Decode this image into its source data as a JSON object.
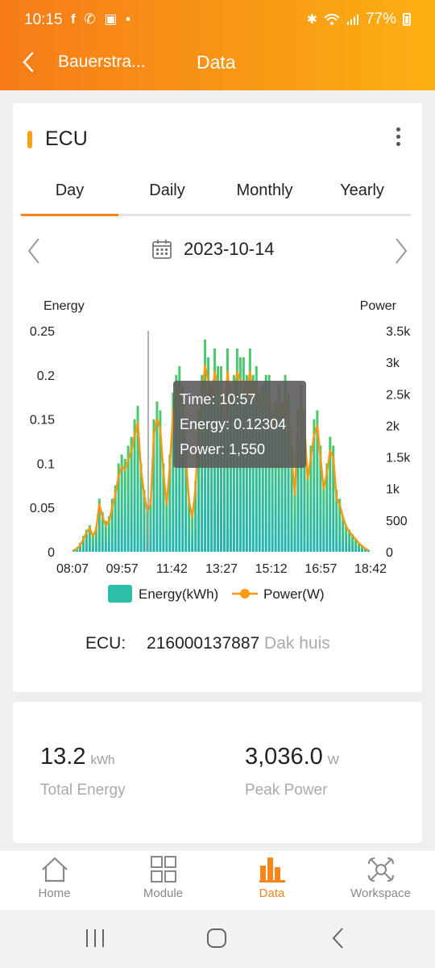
{
  "status_bar": {
    "time": "10:15",
    "notifications": "f ✆ ▣ •",
    "battery": "77%"
  },
  "header": {
    "site_name": "Bauerstra...",
    "title": "Data"
  },
  "card": {
    "title": "ECU",
    "tabs": [
      "Day",
      "Daily",
      "Monthly",
      "Yearly"
    ],
    "active_tab": "Day",
    "date": "2023-10-14"
  },
  "colors": {
    "accent": "#f5861c",
    "energy_bar": "#2bbfa6",
    "power_line": "#f59a12"
  },
  "chart_data": {
    "type": "bar",
    "left_axis_label": "Energy",
    "right_axis_label": "Power",
    "left_ticks": [
      "0.25",
      "0.2",
      "0.15",
      "0.1",
      "0.05",
      "0"
    ],
    "right_ticks": [
      "3.5k",
      "3k",
      "2.5k",
      "2k",
      "1.5k",
      "1k",
      "500",
      "0"
    ],
    "x_ticks": [
      "08:07",
      "09:57",
      "11:42",
      "13:27",
      "15:12",
      "16:57",
      "18:42"
    ],
    "ylim_energy": [
      0,
      0.25
    ],
    "ylim_power": [
      0,
      3500
    ],
    "legend": [
      "Energy(kWh)",
      "Power(W)"
    ],
    "tooltip": {
      "time": "Time: 10:57",
      "energy": "Energy: 0.12304",
      "power": "Power: 1,550"
    },
    "series": [
      {
        "name": "Energy(kWh)",
        "values": [
          0.002,
          0.005,
          0.01,
          0.018,
          0.025,
          0.03,
          0.02,
          0.028,
          0.06,
          0.045,
          0.035,
          0.04,
          0.06,
          0.075,
          0.1,
          0.11,
          0.105,
          0.12,
          0.13,
          0.15,
          0.165,
          0.1,
          0.07,
          0.05,
          0.06,
          0.15,
          0.17,
          0.16,
          0.1,
          0.06,
          0.11,
          0.18,
          0.2,
          0.21,
          0.19,
          0.12,
          0.06,
          0.04,
          0.08,
          0.16,
          0.2,
          0.24,
          0.22,
          0.19,
          0.23,
          0.21,
          0.21,
          0.17,
          0.23,
          0.19,
          0.2,
          0.23,
          0.22,
          0.22,
          0.2,
          0.23,
          0.2,
          0.21,
          0.18,
          0.19,
          0.2,
          0.2,
          0.16,
          0.17,
          0.19,
          0.17,
          0.2,
          0.18,
          0.12,
          0.07,
          0.16,
          0.19,
          0.16,
          0.09,
          0.12,
          0.15,
          0.16,
          0.12,
          0.08,
          0.1,
          0.13,
          0.12,
          0.07,
          0.06,
          0.04,
          0.03,
          0.025,
          0.02,
          0.015,
          0.01,
          0.007,
          0.004,
          0.002
        ]
      },
      {
        "name": "Power(W)",
        "values": [
          20,
          50,
          100,
          200,
          300,
          380,
          250,
          350,
          750,
          550,
          420,
          480,
          700,
          900,
          1200,
          1350,
          1300,
          1450,
          1600,
          1850,
          2050,
          1300,
          900,
          650,
          750,
          1850,
          2100,
          1950,
          1250,
          750,
          1350,
          2200,
          2450,
          2600,
          2350,
          1500,
          800,
          550,
          1000,
          2000,
          2450,
          2950,
          2700,
          2350,
          2850,
          2600,
          2600,
          2100,
          2850,
          2350,
          2450,
          2850,
          2700,
          2700,
          2450,
          2850,
          2450,
          2600,
          2250,
          2350,
          2450,
          2450,
          2000,
          2100,
          2350,
          2100,
          2450,
          2200,
          1500,
          900,
          2000,
          2350,
          2000,
          1150,
          1500,
          1850,
          2000,
          1500,
          1000,
          1250,
          1600,
          1500,
          850,
          750,
          550,
          400,
          320,
          250,
          200,
          130,
          90,
          50,
          20
        ]
      }
    ]
  },
  "ecu_info": {
    "label": "ECU:",
    "id": "216000137887",
    "note": "Dak huis"
  },
  "stats": [
    {
      "value": "13.2",
      "unit": "kWh",
      "caption": "Total Energy"
    },
    {
      "value": "3,036.0",
      "unit": "W",
      "caption": "Peak Power"
    }
  ],
  "nav": [
    {
      "label": "Home",
      "icon": "home-icon"
    },
    {
      "label": "Module",
      "icon": "grid-icon"
    },
    {
      "label": "Data",
      "icon": "bar-chart-icon"
    },
    {
      "label": "Workspace",
      "icon": "workspace-icon"
    }
  ]
}
